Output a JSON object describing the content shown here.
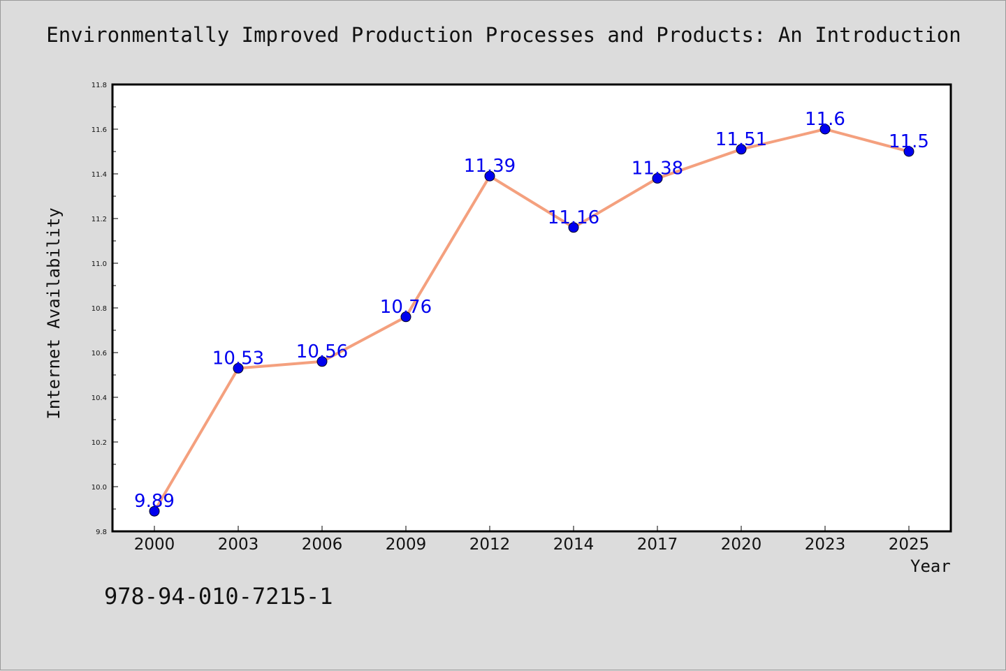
{
  "chart_data": {
    "type": "line",
    "title": "Environmentally Improved Production Processes and Products: An Introduction",
    "xlabel": "Year",
    "ylabel": "Internet Availability",
    "categories": [
      "2000",
      "2003",
      "2006",
      "2009",
      "2012",
      "2014",
      "2017",
      "2020",
      "2023",
      "2025"
    ],
    "series": [
      {
        "values": [
          9.89,
          10.53,
          10.56,
          10.76,
          11.39,
          11.16,
          11.38,
          11.51,
          11.6,
          11.5
        ],
        "data_labels": [
          "9.89",
          "10.53",
          "10.56",
          "10.76",
          "11.39",
          "11.16",
          "11.38",
          "11.51",
          "11.6",
          "11.5"
        ],
        "line_color": "#f4a07e",
        "marker_color": "#0000ee",
        "label_color": "#0000ee"
      }
    ],
    "ylim": [
      9.8,
      11.8
    ],
    "yticks": [
      "9.8",
      "10.0",
      "10.2",
      "10.4",
      "10.6",
      "10.8",
      "11.0",
      "11.2",
      "11.4",
      "11.6",
      "11.8"
    ],
    "grid": false,
    "legend": false,
    "colors": {
      "background": "#dcdcdc",
      "plot_background": "#ffffff",
      "axis": "#000000"
    }
  },
  "footer": {
    "isbn": "978-94-010-7215-1"
  }
}
